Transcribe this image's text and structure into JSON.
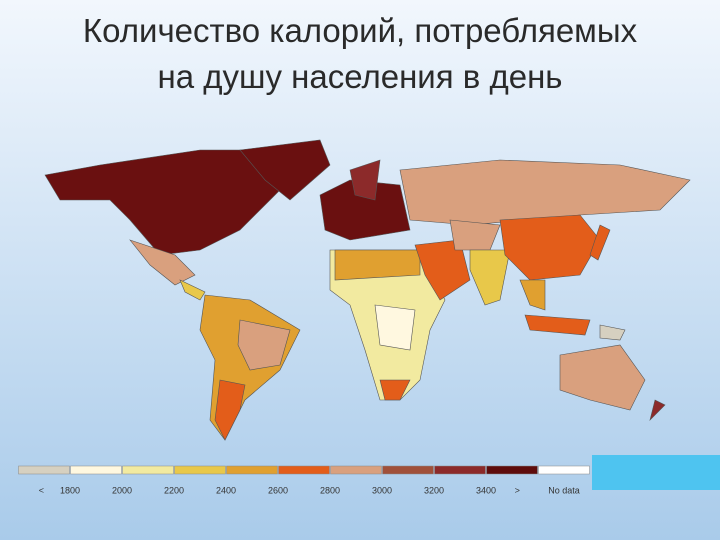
{
  "title_lines": [
    "Количество калорий, потребляемых",
    "на душу населения в день"
  ],
  "legend": {
    "colors": [
      "#d6d0c0",
      "#fff8e0",
      "#f2eaa0",
      "#e8c84a",
      "#e0a030",
      "#e35d1a",
      "#d9a07e",
      "#a0503a",
      "#8c2a2a",
      "#5e0c0c",
      "#ffffff"
    ],
    "labels": [
      "<",
      "1800",
      "2000",
      "2200",
      "2400",
      "2600",
      "2800",
      "3000",
      "3200",
      "3400",
      ">",
      "No data"
    ]
  }
}
